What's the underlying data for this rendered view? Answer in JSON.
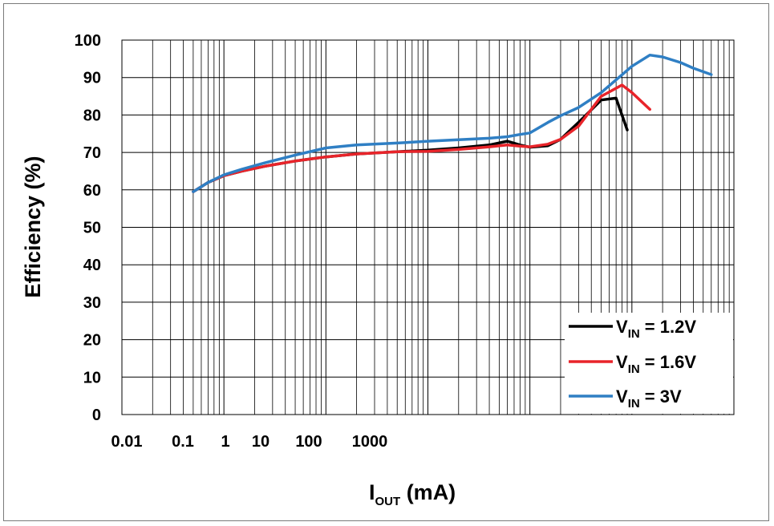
{
  "chart_data": {
    "type": "line",
    "xlabel": "I",
    "xlabel_sub": "OUT",
    "xlabel_unit": " (mA)",
    "ylabel": "Efficiency (%)",
    "x_tick_labels": [
      "0.01",
      "0.1",
      "1",
      "10",
      "100",
      "1000"
    ],
    "yticks": [
      0,
      10,
      20,
      30,
      40,
      50,
      60,
      70,
      80,
      90,
      100
    ],
    "ylim": [
      0,
      100
    ],
    "xscale": "log",
    "grid": true,
    "legend_position": "bottom-right",
    "series": [
      {
        "name": "V",
        "name_sub": "IN",
        "name_rest": " = 1.2V",
        "color": "#000000",
        "x": [
          0.05,
          0.07,
          0.1,
          0.15,
          0.25,
          0.5,
          1,
          2,
          5,
          10,
          20,
          40,
          60,
          80,
          100,
          150,
          200,
          300,
          500,
          700,
          900
        ],
        "y": [
          59.5,
          62,
          63.8,
          65,
          66.3,
          67.7,
          68.8,
          69.6,
          70.2,
          70.6,
          71.2,
          72,
          73,
          72,
          71.4,
          71.8,
          73.5,
          78,
          84,
          84.5,
          76
        ]
      },
      {
        "name": "V",
        "name_sub": "IN",
        "name_rest": " = 1.6V",
        "color": "#e8242a",
        "x": [
          0.05,
          0.07,
          0.1,
          0.15,
          0.25,
          0.5,
          1,
          2,
          5,
          10,
          20,
          40,
          60,
          80,
          100,
          150,
          200,
          300,
          500,
          800,
          1000,
          1500
        ],
        "y": [
          59.5,
          62,
          63.8,
          65,
          66.3,
          67.7,
          68.8,
          69.6,
          70.2,
          70.3,
          70.8,
          71.5,
          72,
          71.7,
          71.5,
          72.2,
          73.5,
          77,
          85,
          88,
          86,
          81.5
        ]
      },
      {
        "name": "V",
        "name_sub": "IN",
        "name_rest": " = 3V",
        "color": "#2f7fc4",
        "x": [
          0.05,
          0.07,
          0.1,
          0.15,
          0.25,
          0.5,
          1,
          2,
          5,
          10,
          20,
          40,
          60,
          80,
          100,
          150,
          200,
          300,
          500,
          1000,
          1500,
          2000,
          3000,
          4000,
          6000
        ],
        "y": [
          59.5,
          62,
          64,
          65.5,
          67.2,
          69.3,
          71.2,
          72,
          72.5,
          73,
          73.4,
          73.8,
          74.2,
          74.8,
          75.2,
          78,
          79.8,
          82,
          86,
          93,
          96,
          95.5,
          94,
          92.5,
          90.8
        ]
      }
    ]
  }
}
